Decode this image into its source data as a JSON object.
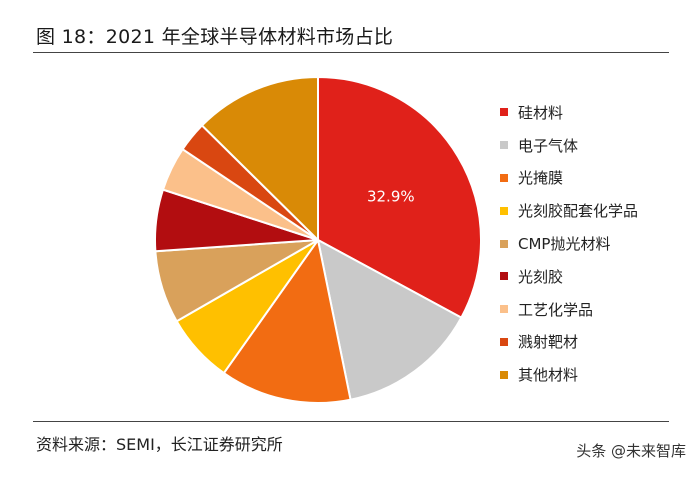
{
  "figure_title": "图 18：2021 年全球半导体材料市场占比",
  "source": "资料来源：SEMI，长江证券研究所",
  "watermark": {
    "text": "头条 @未来智库",
    "overlay_text": "未来智库"
  },
  "chart_data": {
    "type": "pie",
    "title": "2021 年全球半导体材料市场占比",
    "legend_position": "right",
    "slices": [
      {
        "name": "硅材料",
        "value": 32.9,
        "color": "#e0211a",
        "label": "32.9%"
      },
      {
        "name": "电子气体",
        "value": 13.9,
        "color": "#c9c9c9"
      },
      {
        "name": "光掩膜",
        "value": 13.0,
        "color": "#f26c12"
      },
      {
        "name": "光刻胶配套化学品",
        "value": 6.9,
        "color": "#ffc000"
      },
      {
        "name": "CMP抛光材料",
        "value": 7.2,
        "color": "#d9a15b"
      },
      {
        "name": "光刻胶",
        "value": 6.1,
        "color": "#b20d10"
      },
      {
        "name": "工艺化学品",
        "value": 4.4,
        "color": "#fbc08a"
      },
      {
        "name": "溅射靶材",
        "value": 3.0,
        "color": "#d94711"
      },
      {
        "name": "其他材料",
        "value": 12.6,
        "color": "#d98a06"
      }
    ]
  }
}
